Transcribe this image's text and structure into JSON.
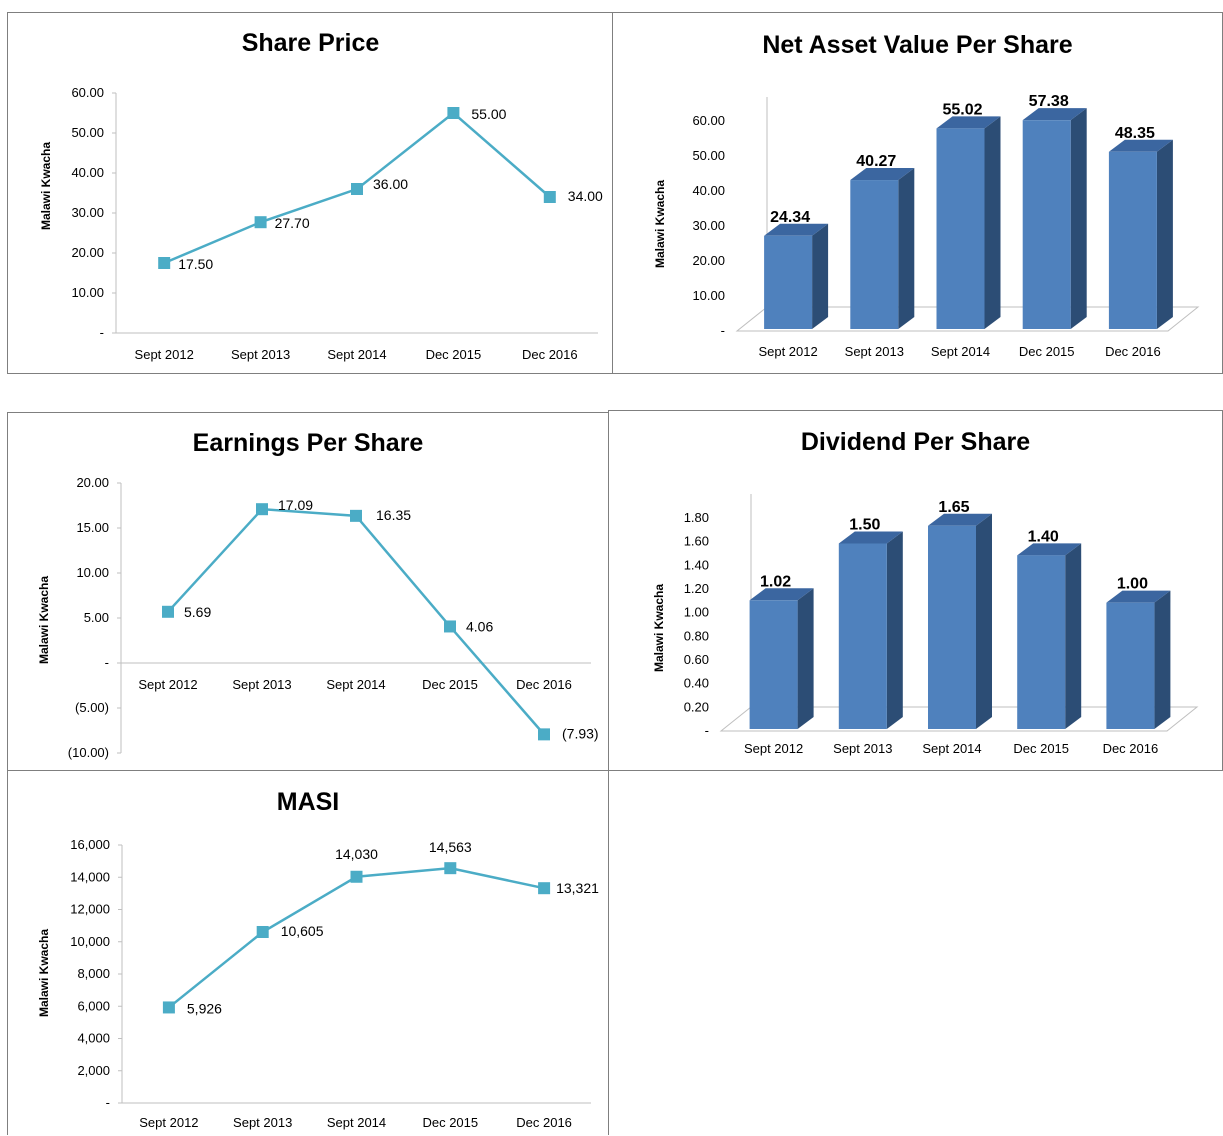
{
  "colors": {
    "line": "#4bacc6",
    "bar_front": "#4f81bd",
    "bar_side": "#2c4d75",
    "bar_top": "#3b66a0",
    "axis": "#bfbfbf"
  },
  "chart_data": [
    {
      "id": "share",
      "type": "line",
      "title": "Share Price",
      "ylabel": "Malawi Kwacha",
      "categories": [
        "Sept 2012",
        "Sept 2013",
        "Sept 2014",
        "Dec 2015",
        "Dec 2016"
      ],
      "values": [
        17.5,
        27.7,
        36.0,
        55.0,
        34.0
      ],
      "data_labels": [
        "17.50",
        "27.70",
        "36.00",
        "55.00",
        "34.00"
      ],
      "ylim": [
        0,
        60
      ],
      "yticks": [
        "-",
        "10.00",
        "20.00",
        "30.00",
        "40.00",
        "50.00",
        "60.00"
      ],
      "grid": false,
      "marker": "square"
    },
    {
      "id": "nav",
      "type": "bar",
      "title": "Net Asset Value Per Share",
      "ylabel": "Malawi Kwacha",
      "categories": [
        "Sept 2012",
        "Sept 2013",
        "Sept 2014",
        "Dec 2015",
        "Dec 2016"
      ],
      "values": [
        24.34,
        40.27,
        55.02,
        57.38,
        48.35
      ],
      "data_labels": [
        "24.34",
        "40.27",
        "55.02",
        "57.38",
        "48.35"
      ],
      "ylim": [
        0,
        60
      ],
      "yticks": [
        "-",
        "10.00",
        "20.00",
        "30.00",
        "40.00",
        "50.00",
        "60.00"
      ],
      "style": "3d"
    },
    {
      "id": "eps",
      "type": "line",
      "title": "Earnings Per Share",
      "ylabel": "Malawi Kwacha",
      "categories": [
        "Sept 2012",
        "Sept 2013",
        "Sept 2014",
        "Dec 2015",
        "Dec 2016"
      ],
      "values": [
        5.69,
        17.09,
        16.35,
        4.06,
        -7.93
      ],
      "data_labels": [
        "5.69",
        "17.09",
        "16.35",
        "4.06",
        "(7.93)"
      ],
      "ylim": [
        -10,
        20
      ],
      "yticks": [
        "(10.00)",
        "(5.00)",
        "-",
        "5.00",
        "10.00",
        "15.00",
        "20.00"
      ],
      "grid": false,
      "marker": "square"
    },
    {
      "id": "dps",
      "type": "bar",
      "title": "Dividend Per Share",
      "ylabel": "Malawi Kwacha",
      "categories": [
        "Sept 2012",
        "Sept 2013",
        "Sept 2014",
        "Dec 2015",
        "Dec 2016"
      ],
      "values": [
        1.02,
        1.5,
        1.65,
        1.4,
        1.0
      ],
      "data_labels": [
        "1.02",
        "1.50",
        "1.65",
        "1.40",
        "1.00"
      ],
      "ylim": [
        0,
        1.8
      ],
      "yticks": [
        "-",
        "0.20",
        "0.40",
        "0.60",
        "0.80",
        "1.00",
        "1.20",
        "1.40",
        "1.60",
        "1.80"
      ],
      "style": "3d"
    },
    {
      "id": "masi",
      "type": "line",
      "title": "MASI",
      "ylabel": "Malawi Kwacha",
      "categories": [
        "Sept 2012",
        "Sept 2013",
        "Sept 2014",
        "Dec 2015",
        "Dec 2016"
      ],
      "values": [
        5926,
        10605,
        14030,
        14563,
        13321
      ],
      "data_labels": [
        "5,926",
        "10,605",
        "14,030",
        "14,563",
        "13,321"
      ],
      "ylim": [
        0,
        16000
      ],
      "yticks": [
        "-",
        "2,000",
        "4,000",
        "6,000",
        "8,000",
        "10,000",
        "12,000",
        "14,000",
        "16,000"
      ],
      "grid": false,
      "marker": "square"
    }
  ]
}
